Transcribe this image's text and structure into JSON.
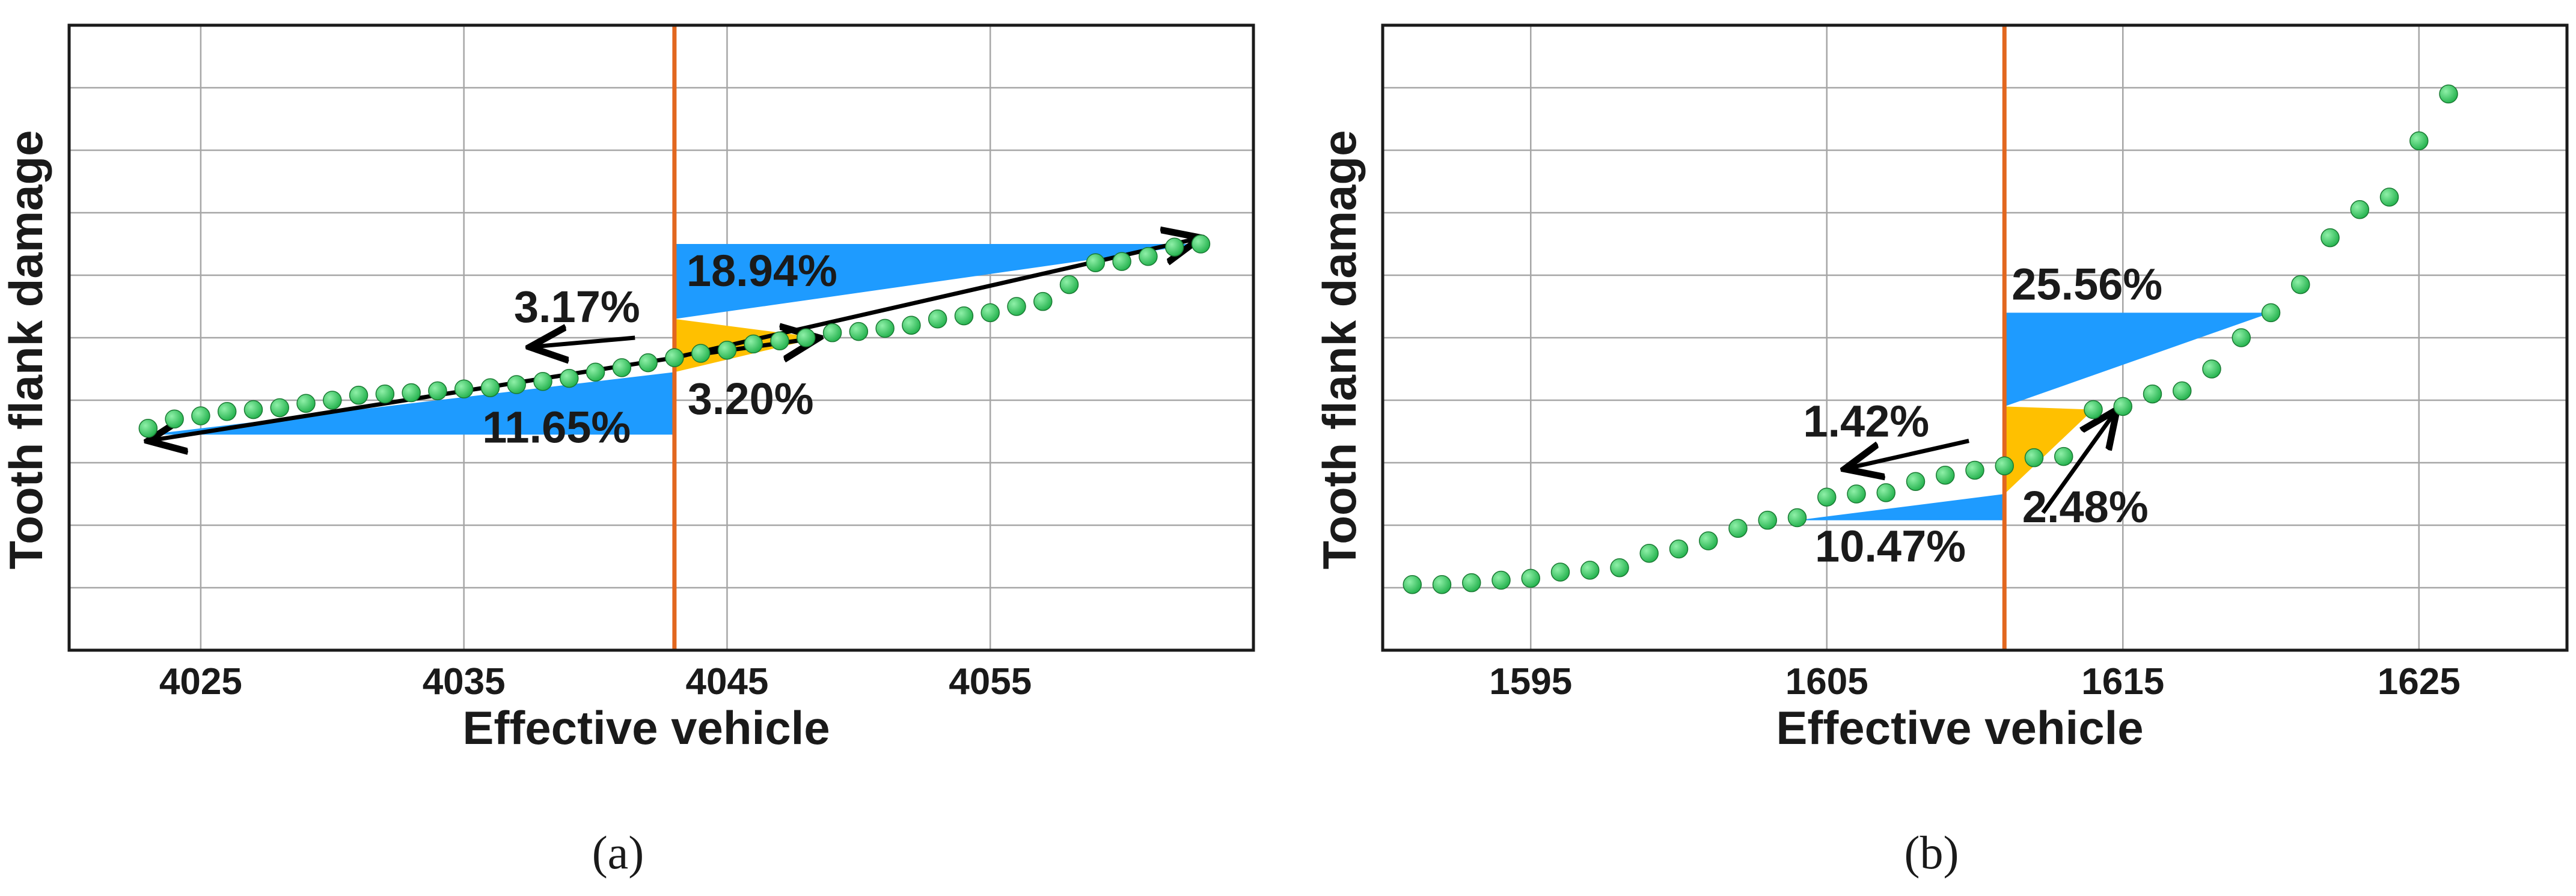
{
  "colors": {
    "marker": "#22b14c",
    "marker_highlight": "#8ff0a8",
    "blue_region": "#1e9bff",
    "yellow_region": "#ffc000",
    "vertical_line": "#e2671f",
    "grid": "#a6a6a6",
    "arrow": "#000000"
  },
  "chart_data": [
    {
      "panel": "(a)",
      "type": "scatter",
      "xlabel": "Effective vehicle",
      "ylabel": "Tooth flank damage",
      "xlim": [
        4020,
        4065
      ],
      "xticks": [
        4025,
        4035,
        4045,
        4055
      ],
      "ylim": [
        0,
        10
      ],
      "ytick_labels_shown": false,
      "grid": true,
      "vertical_line_x": 4043,
      "points": [
        [
          4023,
          3.55
        ],
        [
          4024,
          3.7
        ],
        [
          4025,
          3.75
        ],
        [
          4026,
          3.82
        ],
        [
          4027,
          3.85
        ],
        [
          4028,
          3.88
        ],
        [
          4029,
          3.95
        ],
        [
          4030,
          4.0
        ],
        [
          4031,
          4.08
        ],
        [
          4032,
          4.1
        ],
        [
          4033,
          4.12
        ],
        [
          4034,
          4.15
        ],
        [
          4035,
          4.18
        ],
        [
          4036,
          4.2
        ],
        [
          4037,
          4.25
        ],
        [
          4038,
          4.3
        ],
        [
          4039,
          4.35
        ],
        [
          4040,
          4.45
        ],
        [
          4041,
          4.52
        ],
        [
          4042,
          4.6
        ],
        [
          4043,
          4.68
        ],
        [
          4044,
          4.75
        ],
        [
          4045,
          4.8
        ],
        [
          4046,
          4.9
        ],
        [
          4047,
          4.95
        ],
        [
          4048,
          5.0
        ],
        [
          4049,
          5.08
        ],
        [
          4050,
          5.1
        ],
        [
          4051,
          5.15
        ],
        [
          4052,
          5.2
        ],
        [
          4053,
          5.3
        ],
        [
          4054,
          5.35
        ],
        [
          4055,
          5.4
        ],
        [
          4056,
          5.5
        ],
        [
          4057,
          5.58
        ],
        [
          4058,
          5.85
        ],
        [
          4059,
          6.2
        ],
        [
          4060,
          6.22
        ],
        [
          4061,
          6.3
        ],
        [
          4062,
          6.45
        ],
        [
          4063,
          6.5
        ]
      ],
      "annotations": [
        {
          "text": "18.94%",
          "color": "blue"
        },
        {
          "text": "3.17%",
          "color": "black"
        },
        {
          "text": "11.65%",
          "color": "blue"
        },
        {
          "text": "3.20%",
          "color": "black"
        }
      ]
    },
    {
      "panel": "(b)",
      "type": "scatter",
      "xlabel": "Effective vehicle",
      "ylabel": "Tooth flank damage",
      "xlim": [
        1590,
        1630
      ],
      "xticks": [
        1595,
        1605,
        1615,
        1625
      ],
      "ylim": [
        0,
        10
      ],
      "ytick_labels_shown": false,
      "grid": true,
      "vertical_line_x": 1611,
      "points": [
        [
          1591,
          1.05
        ],
        [
          1592,
          1.05
        ],
        [
          1593,
          1.08
        ],
        [
          1594,
          1.12
        ],
        [
          1595,
          1.15
        ],
        [
          1596,
          1.25
        ],
        [
          1597,
          1.28
        ],
        [
          1598,
          1.32
        ],
        [
          1599,
          1.55
        ],
        [
          1600,
          1.62
        ],
        [
          1601,
          1.75
        ],
        [
          1602,
          1.95
        ],
        [
          1603,
          2.08
        ],
        [
          1604,
          2.12
        ],
        [
          1605,
          2.45
        ],
        [
          1606,
          2.5
        ],
        [
          1607,
          2.52
        ],
        [
          1608,
          2.7
        ],
        [
          1609,
          2.8
        ],
        [
          1610,
          2.88
        ],
        [
          1611,
          2.95
        ],
        [
          1612,
          3.08
        ],
        [
          1613,
          3.1
        ],
        [
          1614,
          3.85
        ],
        [
          1615,
          3.9
        ],
        [
          1616,
          4.1
        ],
        [
          1617,
          4.15
        ],
        [
          1618,
          4.5
        ],
        [
          1619,
          5.0
        ],
        [
          1620,
          5.4
        ],
        [
          1621,
          5.85
        ],
        [
          1622,
          6.6
        ],
        [
          1623,
          7.05
        ],
        [
          1624,
          7.25
        ],
        [
          1625,
          8.15
        ],
        [
          1626,
          8.9
        ]
      ],
      "annotations": [
        {
          "text": "25.56%",
          "color": "blue"
        },
        {
          "text": "1.42%",
          "color": "black"
        },
        {
          "text": "10.47%",
          "color": "blue"
        },
        {
          "text": "2.48%",
          "color": "black"
        }
      ]
    }
  ]
}
